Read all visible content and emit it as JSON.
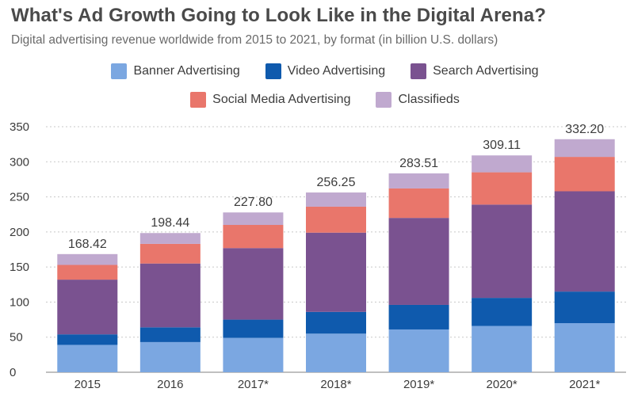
{
  "chart_data": {
    "type": "bar",
    "stacked": true,
    "title": "What's Ad Growth Going to Look Like in the Digital Arena?",
    "subtitle": "Digital advertising revenue worldwide from 2015 to 2021, by format (in billion U.S. dollars)",
    "categories": [
      "2015",
      "2016",
      "2017*",
      "2018*",
      "2019*",
      "2020*",
      "2021*"
    ],
    "series": [
      {
        "name": "Banner Advertising",
        "color": "#7ba7e1",
        "values": [
          39,
          43,
          49,
          55,
          61,
          66,
          70
        ]
      },
      {
        "name": "Video Advertising",
        "color": "#0f5aad",
        "values": [
          15,
          21,
          26,
          31,
          35,
          40,
          45
        ]
      },
      {
        "name": "Search Advertising",
        "color": "#7a5290",
        "values": [
          78,
          91,
          102,
          113,
          124,
          133,
          143
        ]
      },
      {
        "name": "Social Media Advertising",
        "color": "#e9766b",
        "values": [
          21,
          28,
          33,
          37,
          42,
          46,
          49
        ]
      },
      {
        "name": "Classifieds",
        "color": "#c0a9cf",
        "values": [
          15.42,
          15.44,
          17.8,
          20.25,
          21.51,
          24.11,
          25.2
        ]
      }
    ],
    "totals": [
      "168.42",
      "198.44",
      "227.80",
      "256.25",
      "283.51",
      "309.11",
      "332.20"
    ],
    "ylim": [
      0,
      350
    ],
    "yticks": [
      0,
      50,
      100,
      150,
      200,
      250,
      300,
      350
    ],
    "grid": true,
    "legend_position": "top-center",
    "xlabel": "",
    "ylabel": ""
  }
}
